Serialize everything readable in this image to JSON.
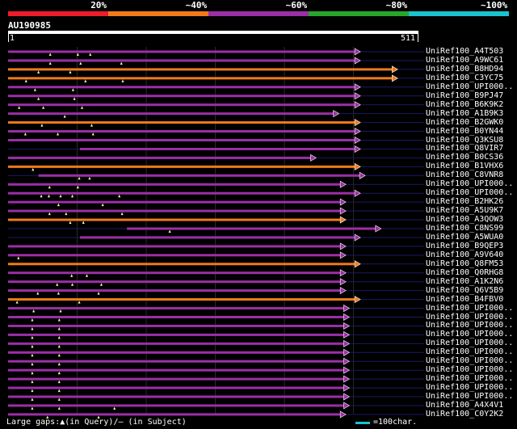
{
  "identity_legend": [
    {
      "label": "20%",
      "color": "#ee1c2a"
    },
    {
      "label": "~40%",
      "color": "#f07a1c"
    },
    {
      "label": "~60%",
      "color": "#9b2fa6"
    },
    {
      "label": "~80%",
      "color": "#27a62a"
    },
    {
      "label": "~100%",
      "color": "#19c3cf"
    }
  ],
  "query": {
    "id": "AU190985",
    "start": "1",
    "end": "511"
  },
  "hits": [
    {
      "name": "UniRef100_A4T503",
      "color": "#9b2fa6",
      "start": 1,
      "end": 511,
      "gaps": [
        62,
        102,
        120
      ]
    },
    {
      "name": "UniRef100_A9WC61",
      "color": "#9b2fa6",
      "start": 1,
      "end": 511,
      "gaps": [
        62,
        106,
        165
      ]
    },
    {
      "name": "UniRef100_B8HD94",
      "color": "#f07a1c",
      "start": 1,
      "end": 565,
      "gaps": [
        45,
        91
      ]
    },
    {
      "name": "UniRef100_C3YC75",
      "color": "#f07a1c",
      "start": 1,
      "end": 565,
      "gaps": [
        27,
        113,
        167
      ]
    },
    {
      "name": "UniRef100_UPI000..",
      "color": "#9b2fa6",
      "start": 1,
      "end": 511,
      "gaps": [
        40,
        95
      ]
    },
    {
      "name": "UniRef100_B9PJ47",
      "color": "#9b2fa6",
      "start": 1,
      "end": 511,
      "gaps": [
        45,
        97
      ]
    },
    {
      "name": "UniRef100_B6K9K2",
      "color": "#9b2fa6",
      "start": 1,
      "end": 511,
      "gaps": [
        17,
        52,
        108
      ]
    },
    {
      "name": "UniRef100_A1B9K3",
      "color": "#9b2fa6",
      "start": 1,
      "end": 480,
      "gaps": [
        83
      ]
    },
    {
      "name": "UniRef100_B2GWK0",
      "color": "#f07a1c",
      "start": 1,
      "end": 511,
      "gaps": [
        50,
        122
      ]
    },
    {
      "name": "UniRef100_B0YN44",
      "color": "#9b2fa6",
      "start": 1,
      "end": 511,
      "gaps": [
        26,
        73,
        124
      ]
    },
    {
      "name": "UniRef100_Q3KSU8",
      "color": "#9b2fa6",
      "start": 1,
      "end": 511,
      "gaps": []
    },
    {
      "name": "UniRef100_Q8VIR7",
      "color": "#9b2fa6",
      "start": 105,
      "end": 511,
      "gaps": []
    },
    {
      "name": "UniRef100_B0CS36",
      "color": "#9b2fa6",
      "start": 1,
      "end": 447,
      "gaps": []
    },
    {
      "name": "UniRef100_B1VHX6",
      "color": "#f07a1c",
      "start": 1,
      "end": 511,
      "gaps": [
        37
      ]
    },
    {
      "name": "UniRef100_C8VNR8",
      "color": "#9b2fa6",
      "start": 45,
      "end": 518,
      "gaps": [
        104,
        119
      ]
    },
    {
      "name": "UniRef100_UPI000..",
      "color": "#9b2fa6",
      "start": 1,
      "end": 490,
      "gaps": [
        61,
        102
      ]
    },
    {
      "name": "UniRef100_UPI000..",
      "color": "#9b2fa6",
      "start": 1,
      "end": 511,
      "gaps": [
        49,
        60,
        77,
        94,
        162
      ]
    },
    {
      "name": "UniRef100_B2HK26",
      "color": "#9b2fa6",
      "start": 1,
      "end": 490,
      "gaps": [
        74,
        138
      ]
    },
    {
      "name": "UniRef100_A5U9K7",
      "color": "#9b2fa6",
      "start": 1,
      "end": 490,
      "gaps": [
        61,
        85,
        166
      ]
    },
    {
      "name": "UniRef100_A3QOW3",
      "color": "#f07a1c",
      "start": 1,
      "end": 490,
      "gaps": [
        91,
        110
      ]
    },
    {
      "name": "UniRef100_C8NS99",
      "color": "#9b2fa6",
      "start": 173,
      "end": 541,
      "gaps": [
        235
      ]
    },
    {
      "name": "UniRef100_A5WUA0",
      "color": "#9b2fa6",
      "start": 105,
      "end": 511,
      "gaps": []
    },
    {
      "name": "UniRef100_B9QEP3",
      "color": "#9b2fa6",
      "start": 1,
      "end": 490,
      "gaps": []
    },
    {
      "name": "UniRef100_A9V640",
      "color": "#9b2fa6",
      "start": 1,
      "end": 490,
      "gaps": [
        16
      ]
    },
    {
      "name": "UniRef100_Q8FM53",
      "color": "#f07a1c",
      "start": 1,
      "end": 511,
      "gaps": []
    },
    {
      "name": "UniRef100_Q0RHG8",
      "color": "#9b2fa6",
      "start": 1,
      "end": 490,
      "gaps": [
        93,
        115
      ]
    },
    {
      "name": "UniRef100_A1K2N6",
      "color": "#9b2fa6",
      "start": 1,
      "end": 490,
      "gaps": [
        72,
        94,
        136
      ]
    },
    {
      "name": "UniRef100_Q6V5B9",
      "color": "#9b2fa6",
      "start": 1,
      "end": 490,
      "gaps": [
        44,
        74,
        132
      ]
    },
    {
      "name": "UniRef100_B4FBV0",
      "color": "#f07a1c",
      "start": 1,
      "end": 511,
      "gaps": [
        14,
        104
      ]
    },
    {
      "name": "UniRef100_UPI000..",
      "color": "#9b2fa6",
      "start": 1,
      "end": 495,
      "gaps": [
        38,
        77
      ]
    },
    {
      "name": "UniRef100_UPI000..",
      "color": "#9b2fa6",
      "start": 1,
      "end": 495,
      "gaps": [
        36,
        75
      ]
    },
    {
      "name": "UniRef100_UPI000..",
      "color": "#9b2fa6",
      "start": 1,
      "end": 495,
      "gaps": [
        36,
        75
      ]
    },
    {
      "name": "UniRef100_UPI000..",
      "color": "#9b2fa6",
      "start": 1,
      "end": 495,
      "gaps": [
        36,
        75
      ]
    },
    {
      "name": "UniRef100_UPI000..",
      "color": "#9b2fa6",
      "start": 1,
      "end": 495,
      "gaps": [
        36,
        75
      ]
    },
    {
      "name": "UniRef100_UPI000..",
      "color": "#9b2fa6",
      "start": 1,
      "end": 495,
      "gaps": [
        36,
        75
      ]
    },
    {
      "name": "UniRef100_UPI000..",
      "color": "#9b2fa6",
      "start": 1,
      "end": 495,
      "gaps": [
        36,
        75
      ]
    },
    {
      "name": "UniRef100_UPI000..",
      "color": "#9b2fa6",
      "start": 1,
      "end": 495,
      "gaps": [
        36,
        75
      ]
    },
    {
      "name": "UniRef100_UPI000..",
      "color": "#9b2fa6",
      "start": 1,
      "end": 495,
      "gaps": [
        36,
        75
      ]
    },
    {
      "name": "UniRef100_UPI000..",
      "color": "#9b2fa6",
      "start": 1,
      "end": 495,
      "gaps": [
        36,
        75
      ]
    },
    {
      "name": "UniRef100_UPI000..",
      "color": "#9b2fa6",
      "start": 1,
      "end": 495,
      "gaps": [
        36,
        75
      ]
    },
    {
      "name": "UniRef100_A4X4V1",
      "color": "#9b2fa6",
      "start": 1,
      "end": 495,
      "gaps": [
        36,
        75,
        155
      ]
    },
    {
      "name": "UniRef100_C0Y2K2",
      "color": "#9b2fa6",
      "start": 1,
      "end": 490,
      "gaps": [
        58,
        132
      ]
    }
  ],
  "footer": {
    "gap_legend": "Large gaps:▲(in Query)/– (in Subject)",
    "scale_label": "=100char."
  }
}
